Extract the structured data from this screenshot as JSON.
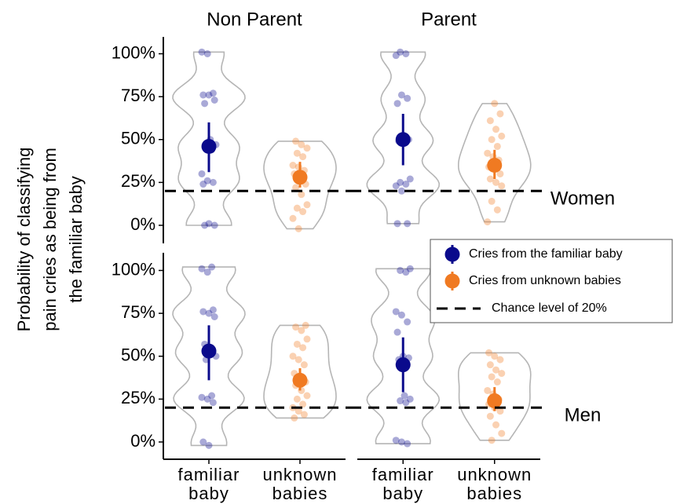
{
  "chart_data": {
    "type": "violin",
    "y_label": [
      "Probability of classifying",
      "pain cries as being from",
      "the familiar baby"
    ],
    "columns": [
      "Non Parent",
      "Parent"
    ],
    "rows": [
      "Women",
      "Men"
    ],
    "categories": [
      [
        "familiar",
        "baby"
      ],
      [
        "unknown",
        "babies"
      ]
    ],
    "ylim": [
      -5,
      110
    ],
    "yticks": [
      {
        "value": 0,
        "label": "0%"
      },
      {
        "value": 25,
        "label": "25%"
      },
      {
        "value": 50,
        "label": "50%"
      },
      {
        "value": 75,
        "label": "75%"
      },
      {
        "value": 100,
        "label": "100%"
      }
    ],
    "chance": {
      "value": 20,
      "label": "Chance level of 20%"
    },
    "series": [
      {
        "name": "Cries from the familiar baby",
        "color": "#0a0a8c"
      },
      {
        "name": "Cries from unknown babies",
        "color": "#f07a22"
      }
    ],
    "legend": "right",
    "panels": [
      [
        {
          "groups": [
            {
              "mean": 46,
              "ci": [
                31,
                60
              ],
              "points": [
                101,
                100,
                77,
                76,
                76,
                73,
                71,
                50,
                47,
                45,
                44,
                30,
                26,
                25,
                24,
                1,
                0,
                0
              ]
            },
            {
              "mean": 28,
              "ci": [
                22,
                37
              ],
              "points": [
                49,
                47,
                45,
                42,
                40,
                35,
                34,
                32,
                30,
                28,
                24,
                22,
                18,
                12,
                10,
                8,
                4,
                -2
              ]
            }
          ]
        },
        {
          "groups": [
            {
              "mean": 50,
              "ci": [
                35,
                65
              ],
              "points": [
                101,
                100,
                99,
                76,
                74,
                71,
                51,
                50,
                49,
                48,
                27,
                25,
                24,
                23,
                20,
                1,
                1
              ]
            },
            {
              "mean": 35,
              "ci": [
                27,
                44
              ],
              "points": [
                71,
                65,
                61,
                56,
                52,
                50,
                46,
                42,
                40,
                38,
                34,
                33,
                30,
                27,
                25,
                23,
                14,
                9,
                2
              ]
            }
          ]
        }
      ],
      [
        {
          "groups": [
            {
              "mean": 53,
              "ci": [
                36,
                68
              ],
              "points": [
                102,
                101,
                99,
                77,
                76,
                75,
                73,
                57,
                53,
                50,
                48,
                27,
                26,
                25,
                23,
                0,
                -2
              ]
            },
            {
              "mean": 36,
              "ci": [
                30,
                43
              ],
              "points": [
                68,
                67,
                65,
                60,
                57,
                55,
                50,
                48,
                45,
                40,
                37,
                35,
                33,
                30,
                27,
                25,
                22,
                20,
                18,
                16,
                14
              ]
            }
          ]
        },
        {
          "groups": [
            {
              "mean": 45,
              "ci": [
                29,
                61
              ],
              "points": [
                101,
                100,
                99,
                76,
                74,
                70,
                64,
                50,
                49,
                48,
                27,
                25,
                24,
                23,
                1,
                0,
                -1
              ]
            },
            {
              "mean": 24,
              "ci": [
                18,
                32
              ],
              "points": [
                52,
                50,
                48,
                45,
                42,
                40,
                38,
                35,
                30,
                28,
                25,
                22,
                20,
                18,
                15,
                10,
                5,
                1
              ]
            }
          ]
        }
      ]
    ]
  }
}
